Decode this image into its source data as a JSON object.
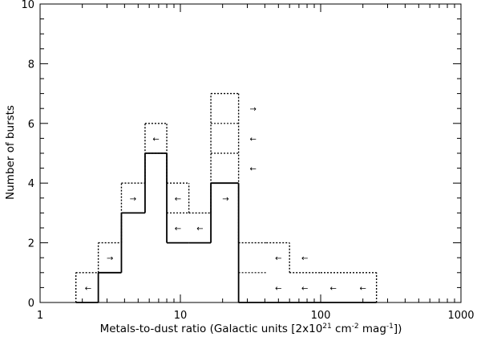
{
  "chart_data": {
    "type": "bar",
    "subtype": "step-histogram",
    "title": "",
    "xlabel": "Metals-to-dust ratio (Galactic units [2x10",
    "xlabel_sup1": "21",
    "xlabel_mid": " cm",
    "xlabel_sup2": "-2",
    "xlabel_mid2": " mag",
    "xlabel_sup3": "-1",
    "xlabel_end": "])",
    "ylabel": "Number of bursts",
    "x_scale": "log",
    "xlim": [
      1,
      1000
    ],
    "ylim": [
      0,
      10
    ],
    "x_tick_labels": [
      "1",
      "10",
      "100",
      "1000"
    ],
    "y_tick_labels": [
      "0",
      "2",
      "4",
      "6",
      "8",
      "10"
    ],
    "bin_edges": [
      1.8,
      2.6,
      3.8,
      5.6,
      8.0,
      11.5,
      16.5,
      26,
      41,
      60,
      100,
      250
    ],
    "series": [
      {
        "line": "solid",
        "values": [
          0,
          1,
          3,
          5,
          2,
          2,
          4,
          0,
          0,
          0,
          0
        ]
      },
      {
        "line": "dotted",
        "values": [
          1,
          2,
          4,
          6,
          4,
          3,
          7,
          2,
          2,
          1,
          1
        ]
      }
    ],
    "limit_arrows": [
      {
        "x": 2.2,
        "y": 0.5,
        "dir": "left"
      },
      {
        "x": 3.15,
        "y": 1.5,
        "dir": "right"
      },
      {
        "x": 4.6,
        "y": 3.5,
        "dir": "right"
      },
      {
        "x": 6.7,
        "y": 5.5,
        "dir": "left"
      },
      {
        "x": 9.6,
        "y": 3.5,
        "dir": "left"
      },
      {
        "x": 9.6,
        "y": 2.5,
        "dir": "left"
      },
      {
        "x": 13.8,
        "y": 2.5,
        "dir": "left"
      },
      {
        "x": 21,
        "y": 3.5,
        "dir": "right"
      },
      {
        "x": 33,
        "y": 6.5,
        "dir": "right"
      },
      {
        "x": 33,
        "y": 5.5,
        "dir": "left"
      },
      {
        "x": 33,
        "y": 4.5,
        "dir": "left"
      },
      {
        "x": 50,
        "y": 1.5,
        "dir": "left"
      },
      {
        "x": 77,
        "y": 1.5,
        "dir": "left"
      },
      {
        "x": 50,
        "y": 0.5,
        "dir": "left"
      },
      {
        "x": 77,
        "y": 0.5,
        "dir": "left"
      },
      {
        "x": 123,
        "y": 0.5,
        "dir": "left"
      },
      {
        "x": 200,
        "y": 0.5,
        "dir": "left"
      }
    ]
  }
}
